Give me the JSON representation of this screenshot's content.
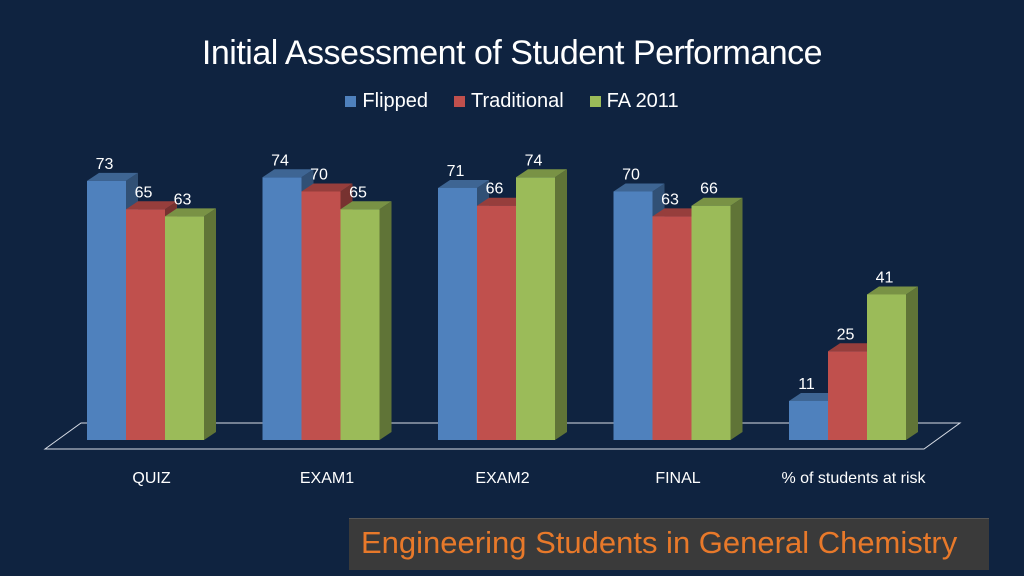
{
  "chart_data": {
    "type": "bar",
    "title": "Initial Assessment of Student Performance",
    "categories": [
      "QUIZ",
      "EXAM1",
      "EXAM2",
      "FINAL",
      "% of students at risk"
    ],
    "series": [
      {
        "name": "Flipped",
        "values": [
          73,
          74,
          71,
          70,
          11
        ],
        "color": "#4f81bd"
      },
      {
        "name": "Traditional",
        "values": [
          65,
          70,
          66,
          63,
          25
        ],
        "color": "#c0504d"
      },
      {
        "name": "FA 2011",
        "values": [
          63,
          65,
          74,
          66,
          41
        ],
        "color": "#9bbb59"
      }
    ],
    "xlabel": "",
    "ylabel": "",
    "ylim": [
      0,
      80
    ],
    "legend_position": "top",
    "grid": false,
    "data_labels": true
  },
  "footer": {
    "text": "Engineering Students in General Chemistry"
  }
}
